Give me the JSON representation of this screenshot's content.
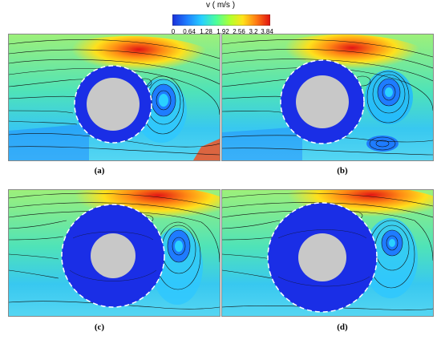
{
  "colorbar": {
    "title": "v ( m/s )",
    "ticks": [
      "0",
      "0.64",
      "1.28",
      "1.92",
      "2.56",
      "3.2",
      "3.84"
    ],
    "stops": [
      "#1a2fd9",
      "#1f7fff",
      "#27d0ff",
      "#4dff9a",
      "#b7ff2a",
      "#ffe21a",
      "#ff7a14",
      "#e01010"
    ]
  },
  "panels": [
    {
      "id": "a",
      "caption": "(a)"
    },
    {
      "id": "b",
      "caption": "(b)"
    },
    {
      "id": "c",
      "caption": "(c)"
    },
    {
      "id": "d",
      "caption": "(d)"
    }
  ],
  "colors": {
    "cylinder": "#c8c8c8",
    "dead_zone": "#1a2ee6",
    "streamline": "#111111",
    "boundary": "#ffffff"
  }
}
